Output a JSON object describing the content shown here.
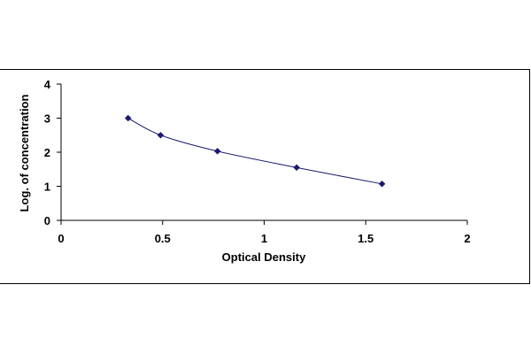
{
  "chart_data": {
    "type": "scatter",
    "title": "",
    "xlabel": "Optical Density",
    "ylabel": "Log. of concentration",
    "xlim": [
      0,
      2
    ],
    "ylim": [
      0,
      4
    ],
    "x_ticks": [
      "0",
      "0.5",
      "1",
      "1.5",
      "2"
    ],
    "y_ticks": [
      "0",
      "1",
      "2",
      "3",
      "4"
    ],
    "grid": false,
    "legend": "none",
    "marker_color": "#1a1a6e",
    "line_color": "#1a1a6e",
    "series": [
      {
        "x": [
          0.33,
          0.49,
          0.77,
          1.16,
          1.58
        ],
        "y": [
          3.0,
          2.5,
          2.03,
          1.55,
          1.07
        ]
      }
    ]
  }
}
